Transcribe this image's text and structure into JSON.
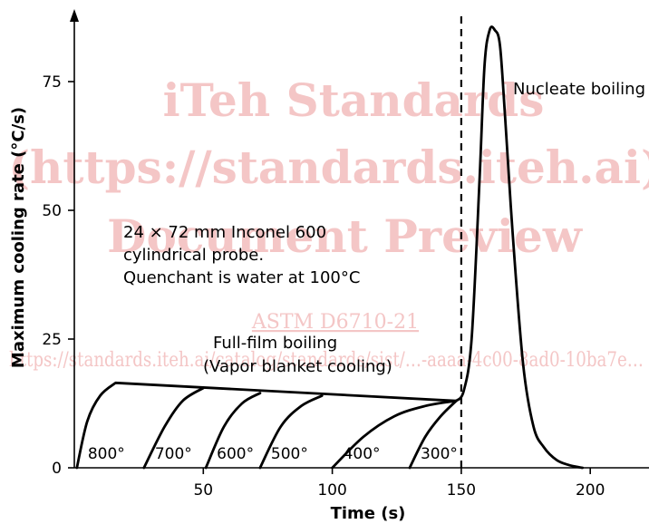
{
  "chart_data": {
    "type": "line",
    "title": "",
    "xlabel": "Time (s)",
    "ylabel": "Maximum cooling rate (°C/s)",
    "xlim": [
      0,
      225
    ],
    "ylim": [
      0,
      88
    ],
    "x_ticks": [
      50,
      100,
      150,
      200
    ],
    "y_ticks": [
      0,
      25,
      50,
      75
    ],
    "grid": false,
    "vline": {
      "x": 150,
      "style": "dashed"
    },
    "annotations": {
      "probe_line1": "24 × 72 mm Inconel 600",
      "probe_line2": "cylindrical probe.",
      "probe_line3": "Quenchant is water at 100°C",
      "film_line1": "Full-film boiling",
      "film_line2": "(Vapor blanket cooling)",
      "nucleate": "Nucleate boiling"
    },
    "series": [
      {
        "label": "800°",
        "x": [
          1,
          5,
          10,
          16,
          148
        ],
        "y": [
          0,
          9,
          14,
          16.5,
          13
        ]
      },
      {
        "label": "700°",
        "x": [
          27,
          35,
          42,
          50
        ],
        "y": [
          0,
          8,
          13,
          15.5
        ]
      },
      {
        "label": "600°",
        "x": [
          51,
          58,
          65,
          72
        ],
        "y": [
          0,
          8,
          12.5,
          14.5
        ]
      },
      {
        "label": "500°",
        "x": [
          72,
          80,
          88,
          96
        ],
        "y": [
          0,
          8,
          12,
          14
        ]
      },
      {
        "label": "400°",
        "x": [
          100,
          112,
          124,
          136,
          148
        ],
        "y": [
          0,
          6,
          10,
          12,
          13
        ]
      },
      {
        "label": "300°",
        "x": [
          130,
          136,
          142,
          148
        ],
        "y": [
          0,
          6,
          10,
          13
        ]
      },
      {
        "label": "",
        "x": [
          148,
          151,
          154,
          157,
          159,
          161,
          163,
          165,
          167,
          170,
          174,
          178,
          182,
          187,
          192,
          197
        ],
        "y": [
          13,
          15,
          25,
          55,
          78,
          85,
          85,
          82,
          68,
          45,
          20,
          8,
          4,
          1.5,
          0.5,
          0
        ]
      }
    ]
  },
  "watermark": {
    "line1": "iTeh Standards",
    "line2": "(https://standards.iteh.ai)",
    "line3": "Document Preview",
    "line4": "ASTM D6710-21",
    "line5": "https://standards.iteh.ai/catalog/standards/sist/…-aaaa-4c00-8ad0-10ba7e…"
  }
}
